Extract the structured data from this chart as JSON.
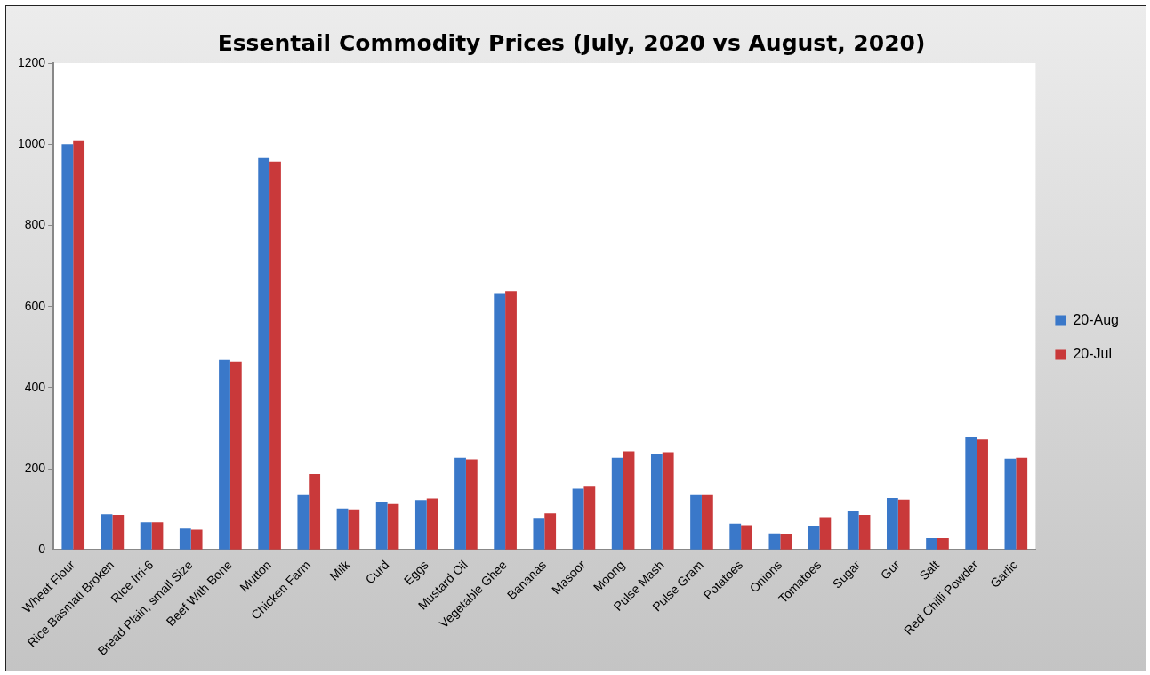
{
  "chart_data": {
    "type": "bar",
    "title": "Essentail Commodity Prices (July, 2020 vs August, 2020)",
    "categories": [
      "Wheat Flour",
      "Rice Basmati Broken",
      "Rice Irri-6",
      "Bread Plain, small Size",
      "Beef With Bone",
      "Mutton",
      "Chicken Farm",
      "Milk",
      "Curd",
      "Eggs",
      "Mustard Oil",
      "Vegetable Ghee",
      "Bananas",
      "Masoor",
      "Moong",
      "Pulse Mash",
      "Pulse Gram",
      "Potatoes",
      "Onions",
      "Tomatoes",
      "Sugar",
      "Gur",
      "Salt",
      "Red Chilli Powder",
      "Garlic"
    ],
    "series": [
      {
        "name": "20-Aug",
        "color": "#3a78c9",
        "values": [
          1000,
          88,
          68,
          53,
          468,
          966,
          135,
          102,
          118,
          123,
          227,
          631,
          77,
          151,
          227,
          237,
          135,
          65,
          41,
          58,
          95,
          128,
          29,
          279,
          225
        ]
      },
      {
        "name": "20-Jul",
        "color": "#c9393a",
        "values": [
          1010,
          86,
          68,
          50,
          464,
          957,
          187,
          100,
          113,
          127,
          223,
          638,
          90,
          156,
          243,
          241,
          135,
          61,
          38,
          81,
          86,
          124,
          29,
          272,
          227
        ]
      }
    ],
    "ylim": [
      0,
      1200
    ],
    "yticks": [
      0,
      200,
      400,
      600,
      800,
      1000,
      1200
    ],
    "grid": false,
    "legend": "right"
  }
}
